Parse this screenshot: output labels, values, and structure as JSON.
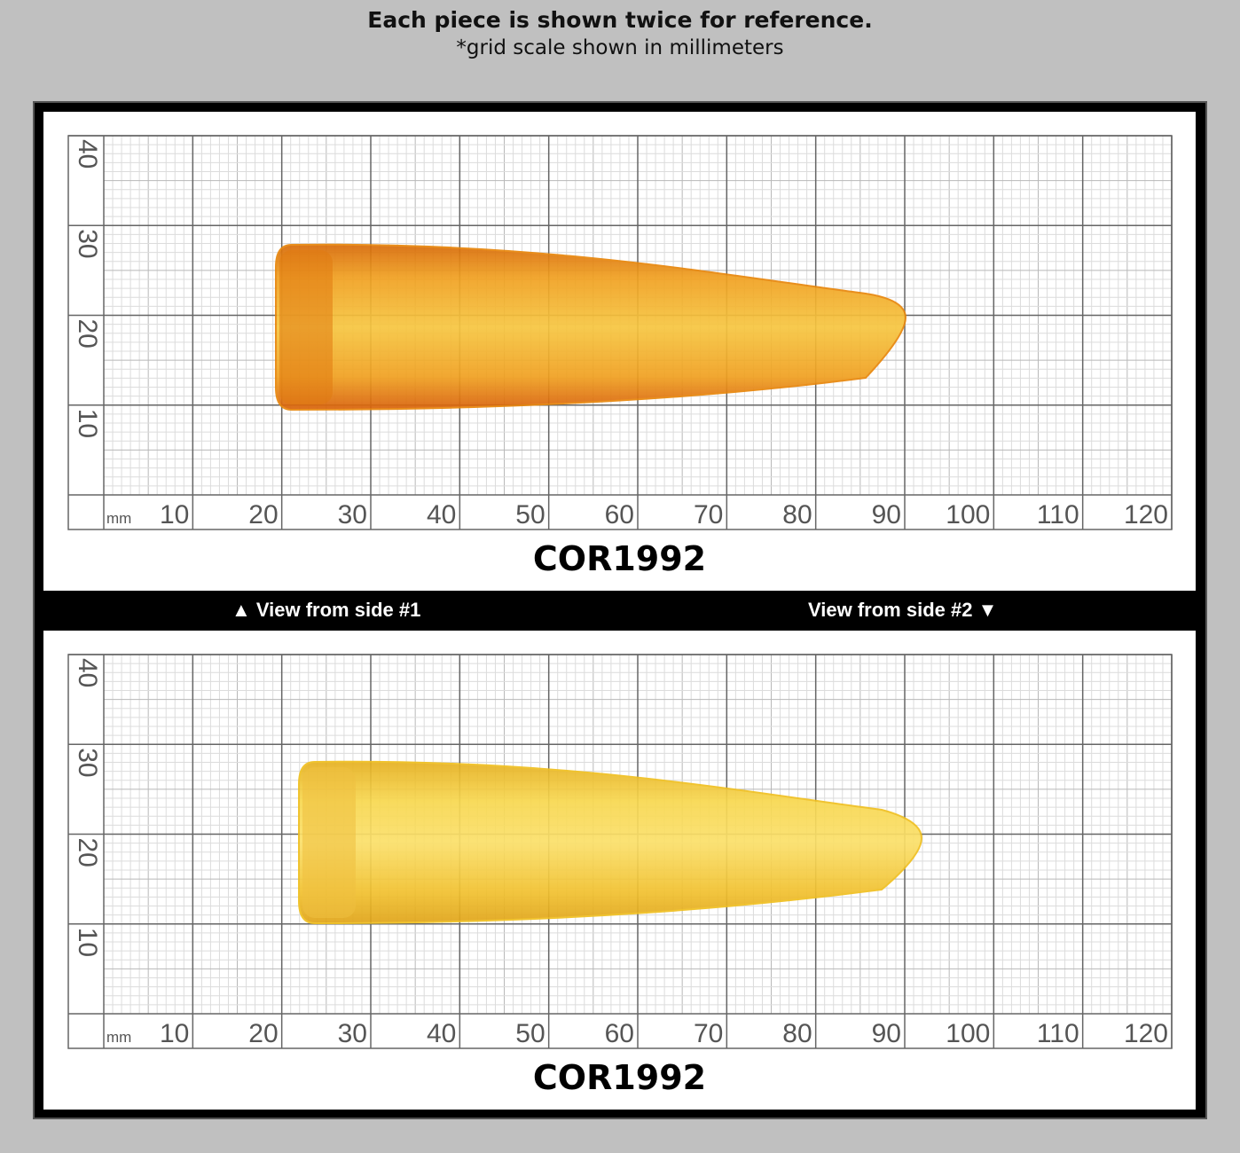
{
  "header": {
    "title": "Each piece is shown twice for reference.",
    "subtitle": "*grid scale shown in millimeters"
  },
  "grid": {
    "unit": "mm",
    "x_labels": [
      "10",
      "20",
      "30",
      "40",
      "50",
      "60",
      "70",
      "80",
      "90",
      "100",
      "110",
      "120"
    ],
    "y_labels": [
      "40",
      "30",
      "20",
      "10"
    ]
  },
  "panels": [
    {
      "code": "COR1992",
      "crystal_color": "#e8860a",
      "view": "side #1"
    },
    {
      "code": "COR1992",
      "crystal_color": "#f0c020",
      "view": "side #2"
    }
  ],
  "strip": {
    "left": "▲ View from side #1",
    "right": "View from side #2 ▼"
  }
}
